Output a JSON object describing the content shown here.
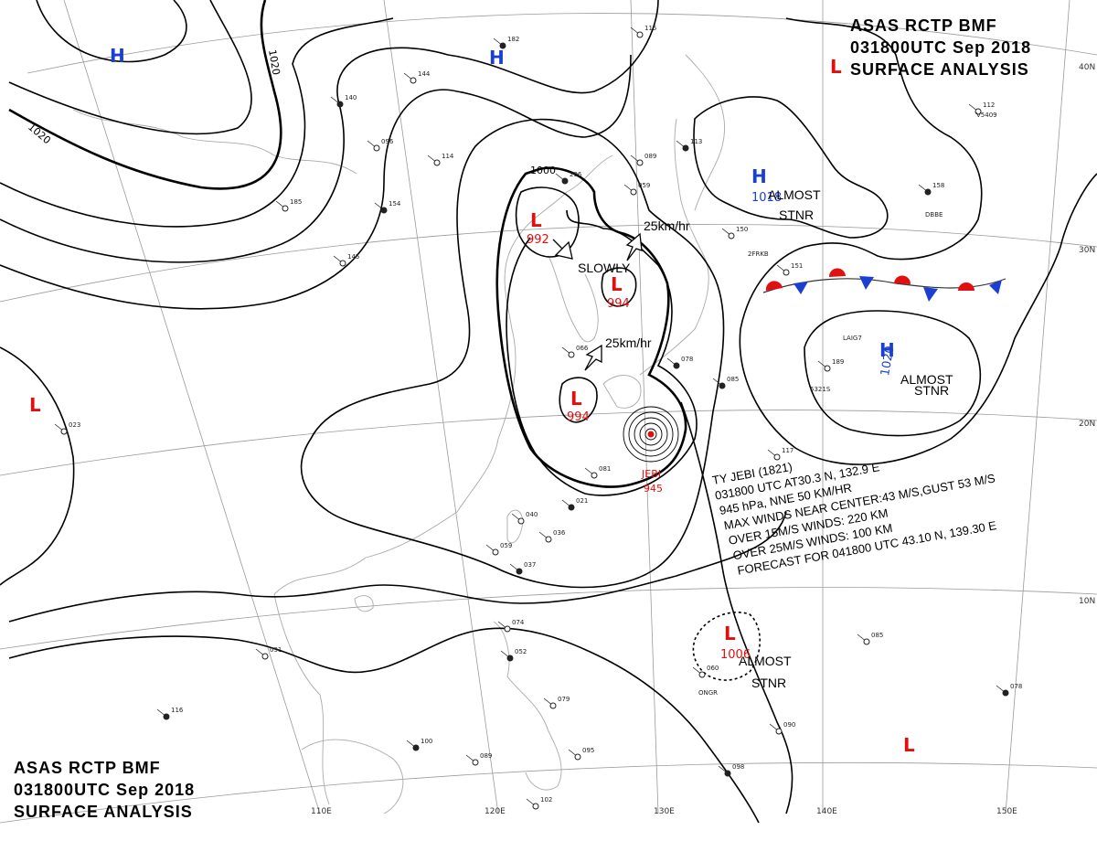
{
  "header": {
    "line1": "ASAS      RCTP      BMF",
    "line2": "031800UTC      Sep      2018",
    "line3": "SURFACE  ANALYSIS"
  },
  "footer": {
    "line1": "ASAS      RCTP      BMF",
    "line2": "031800UTC      Sep      2018",
    "line3": "SURFACE  ANALYSIS"
  },
  "grid": {
    "lat_labels": [
      "40N",
      "30N",
      "20N",
      "10N"
    ],
    "lon_labels": [
      "110E",
      "120E",
      "130E",
      "140E",
      "150E"
    ]
  },
  "isobar_labels": [
    "1020",
    "1020",
    "1000"
  ],
  "pressure_systems": [
    {
      "kind": "H",
      "value": "",
      "color": "#1a3fd1"
    },
    {
      "kind": "H",
      "value": "",
      "color": "#1a3fd1"
    },
    {
      "kind": "L",
      "value": "",
      "color": "#e01010"
    },
    {
      "kind": "H",
      "value": "1018",
      "color": "#1a3fd1"
    },
    {
      "kind": "H",
      "value": "1020",
      "color": "#1a3fd1"
    },
    {
      "kind": "L",
      "value": "992",
      "color": "#e01010"
    },
    {
      "kind": "L",
      "value": "994",
      "color": "#e01010"
    },
    {
      "kind": "L",
      "value": "994",
      "color": "#e01010"
    },
    {
      "kind": "L",
      "value": "",
      "color": "#e01010"
    },
    {
      "kind": "L",
      "value": "1006",
      "color": "#e01010"
    },
    {
      "kind": "L",
      "value": "",
      "color": "#e01010"
    }
  ],
  "annotations": {
    "almost_stnr": [
      "ALMOST",
      "STNR"
    ],
    "slowly": "SLOWLY",
    "speed1": "25km/hr",
    "speed2": "25km/hr",
    "typhoon_name": "JEBI",
    "typhoon_pressure": "945"
  },
  "typhoon_info": {
    "line1": "TY  JEBI  (1821)",
    "line2": "031800 UTC   AT30.3 N, 132.9 E",
    "line3": "945 hPa, NNE  50 KM/HR",
    "line4": "MAX WINDS NEAR CENTER:43 M/S,GUST 53 M/S",
    "line5": "OVER 15M/S WINDS: 220 KM",
    "line6": "OVER 25M/S WINDS: 100 KM",
    "line7": "FORECAST FOR 041800 UTC 43.10 N, 139.30 E"
  },
  "station_values": [
    "182",
    "115",
    "144",
    "140",
    "096",
    "114",
    "154",
    "185",
    "145",
    "296",
    "089",
    "059",
    "113",
    "150",
    "151",
    "158",
    "112",
    "189",
    "085",
    "117",
    "081",
    "021",
    "040",
    "036",
    "037",
    "059",
    "074",
    "052",
    "079",
    "095",
    "100",
    "089",
    "102",
    "098",
    "060",
    "085",
    "078",
    "090",
    "091",
    "116",
    "023",
    "066",
    "078"
  ],
  "station_ids": [
    "V5409",
    "DBBE",
    "2FRKB",
    "LAIG7",
    "ONGR",
    "5321S"
  ],
  "colors": {
    "high": "#1a3fd1",
    "low": "#e01010",
    "land": "#aaaaaa",
    "isobar": "#000000"
  }
}
